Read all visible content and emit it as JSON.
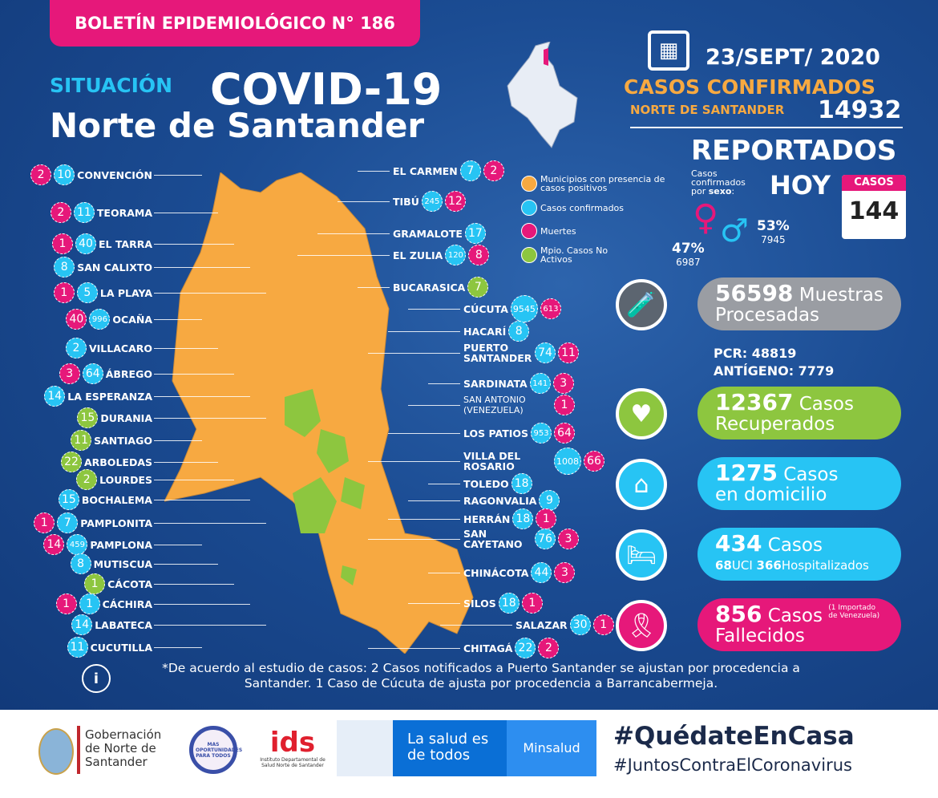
{
  "header": {
    "bulletin": "BOLETÍN EPIDEMIOLÓGICO N° 186",
    "situacion": "SITUACIÓN",
    "covid": "COVID-19",
    "region": "Norte de Santander"
  },
  "colors": {
    "confirmed": "#27c4f4",
    "deaths": "#e6187a",
    "active_presence": "#f7a941",
    "inactive": "#8dc63f",
    "background": "#1b4c93"
  },
  "legend": [
    {
      "label": "Municipios con presencia de casos positivos",
      "color": "#f7a941"
    },
    {
      "label": "Casos confirmados",
      "color": "#27c4f4"
    },
    {
      "label": "Muertes",
      "color": "#e6187a"
    },
    {
      "label": "Mpio. Casos No Activos",
      "color": "#8dc63f"
    }
  ],
  "municipalities_left": [
    {
      "name": "CONVENCIÓN",
      "confirmed": "10",
      "deaths": "2"
    },
    {
      "name": "TEORAMA",
      "confirmed": "11",
      "deaths": "2"
    },
    {
      "name": "EL TARRA",
      "confirmed": "40",
      "deaths": "1"
    },
    {
      "name": "SAN CALIXTO",
      "confirmed": "8"
    },
    {
      "name": "LA PLAYA",
      "confirmed": "5",
      "deaths": "1"
    },
    {
      "name": "OCAÑA",
      "confirmed": "996",
      "deaths": "40"
    },
    {
      "name": "VILLACARO",
      "confirmed": "2"
    },
    {
      "name": "ÁBREGO",
      "confirmed": "64",
      "deaths": "3"
    },
    {
      "name": "LA ESPERANZA",
      "confirmed": "14"
    },
    {
      "name": "DURANIA",
      "inactive": "15"
    },
    {
      "name": "SANTIAGO",
      "inactive": "11"
    },
    {
      "name": "ARBOLEDAS",
      "inactive": "22"
    },
    {
      "name": "LOURDES",
      "inactive": "2"
    },
    {
      "name": "BOCHALEMA",
      "confirmed": "15"
    },
    {
      "name": "PAMPLONITA",
      "confirmed": "7",
      "deaths": "1"
    },
    {
      "name": "PAMPLONA",
      "confirmed": "459",
      "deaths": "14"
    },
    {
      "name": "MUTISCUA",
      "confirmed": "8"
    },
    {
      "name": "CÁCOTA",
      "inactive": "1"
    },
    {
      "name": "CÁCHIRA",
      "confirmed": "1",
      "deaths": "1"
    },
    {
      "name": "LABATECA",
      "confirmed": "14"
    },
    {
      "name": "CUCUTILLA",
      "confirmed": "11"
    }
  ],
  "municipalities_right": [
    {
      "name": "EL CARMEN",
      "confirmed": "7",
      "deaths": "2"
    },
    {
      "name": "TIBÚ",
      "confirmed": "245",
      "deaths": "12"
    },
    {
      "name": "GRAMALOTE",
      "confirmed": "17"
    },
    {
      "name": "EL ZULIA",
      "confirmed": "120",
      "deaths": "8"
    },
    {
      "name": "BUCARASICA",
      "inactive": "7"
    },
    {
      "name": "CÚCUTA",
      "confirmed": "9545",
      "deaths": "613"
    },
    {
      "name": "HACARÍ",
      "confirmed": "8"
    },
    {
      "name": "PUERTO SANTANDER",
      "confirmed": "74",
      "deaths": "11"
    },
    {
      "name": "SARDINATA",
      "confirmed": "141",
      "deaths": "3"
    },
    {
      "name": "SAN ANTONIO (VENEZUELA)",
      "deaths": "1"
    },
    {
      "name": "LOS PATIOS",
      "confirmed": "953",
      "deaths": "64"
    },
    {
      "name": "VILLA DEL ROSARIO",
      "confirmed": "1008",
      "deaths": "66"
    },
    {
      "name": "TOLEDO",
      "confirmed": "18"
    },
    {
      "name": "RAGONVALIA",
      "confirmed": "9"
    },
    {
      "name": "HERRÁN",
      "confirmed": "18",
      "deaths": "1"
    },
    {
      "name": "SAN CAYETANO",
      "confirmed": "76",
      "deaths": "3"
    },
    {
      "name": "CHINÁCOTA",
      "confirmed": "44",
      "deaths": "3"
    },
    {
      "name": "SILOS",
      "confirmed": "18",
      "deaths": "1"
    },
    {
      "name": "SALAZAR",
      "confirmed": "30",
      "deaths": "1"
    },
    {
      "name": "CHITAGÁ",
      "confirmed": "22",
      "deaths": "2"
    }
  ],
  "summary": {
    "date": "23/SEPT/ 2020",
    "confirmed_title": "CASOS CONFIRMADOS",
    "region_label": "NORTE DE SANTANDER",
    "total_confirmed": "14932",
    "reported": "REPORTADOS",
    "today": "HOY",
    "calendar_label": "CASOS",
    "today_cases": "144",
    "sex_label_1": "Casos",
    "sex_label_2": "confirmados",
    "sex_label_3": "por",
    "sex_label_bold": "sexo",
    "female_pct": "47%",
    "female_count": "6987",
    "male_pct": "53%",
    "male_count": "7945"
  },
  "stats": {
    "samples_num": "56598",
    "samples_l1": "Muestras",
    "samples_l2": "Procesadas",
    "pcr": "PCR: 48819",
    "antigen": "ANTÍGENO: 7779",
    "recovered_num": "12367",
    "recovered_l1": "Casos",
    "recovered_l2": "Recuperados",
    "home_num": "1275",
    "home_l1": "Casos",
    "home_l2": "en domicilio",
    "hosp_num": "434",
    "hosp_l1": "Casos",
    "uci_num": "68",
    "uci_label": "UCI",
    "hosp_count": "366",
    "hosp_label": "Hospitalizados",
    "deaths_num": "856",
    "deaths_l1": "Casos",
    "deaths_note": "(1 Importado de Venezuela)",
    "deaths_l2": "Fallecidos"
  },
  "note": "*De acuerdo al estudio de casos: 2 Casos notificados a Puerto Santander se ajustan por procedencia a Santander. 1 Caso de Cúcuta de ajusta por procedencia a Barrancabermeja.",
  "footer": {
    "gob": "Gobernación de Norte de Santander",
    "mas": "MAS OPORTUNIDADES PARA TODOS",
    "ids": "Instituto Departamental de Salud Norte de Santander",
    "salud": "La salud es de todos",
    "minsalud": "Minsalud",
    "hashtag1": "#QuédateEnCasa",
    "hashtag2": "#JuntosContraElCoronavirus"
  }
}
